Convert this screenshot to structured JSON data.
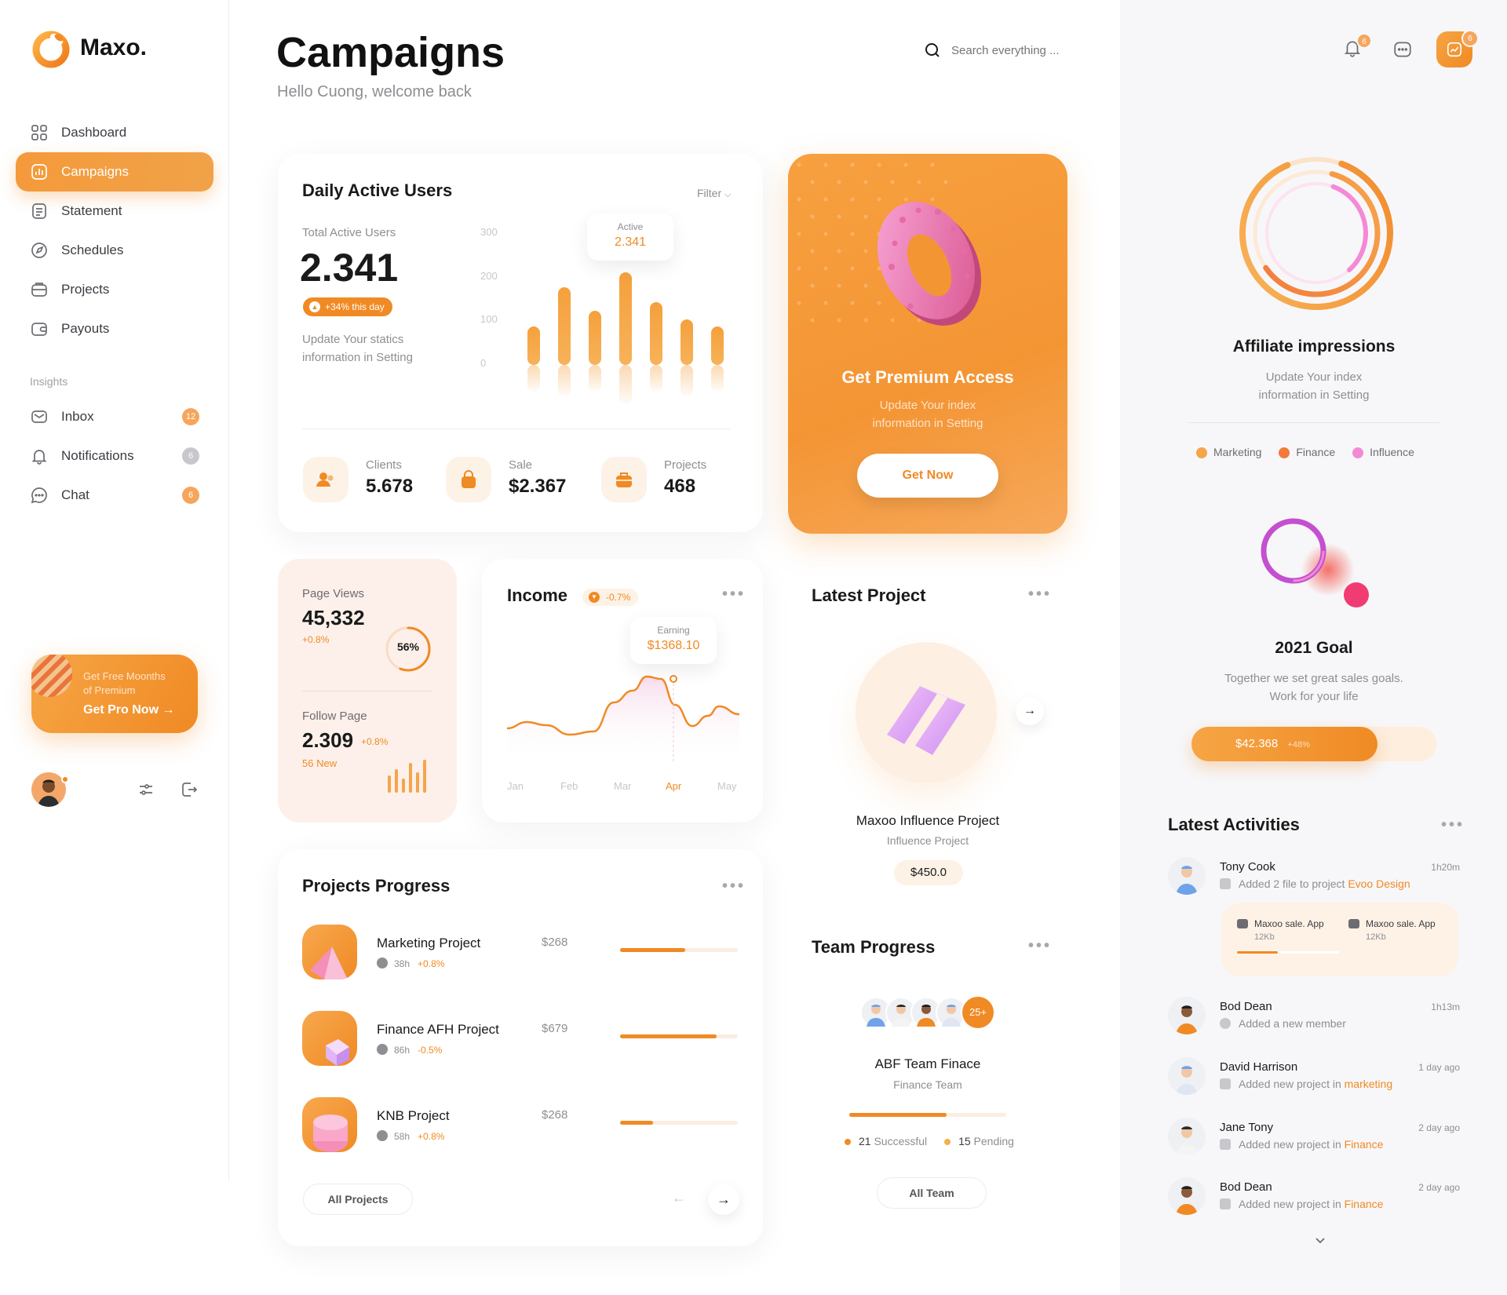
{
  "brand": {
    "name": "Maxo.",
    "accent": "#f08a24"
  },
  "sidebar": {
    "items": [
      {
        "label": "Dashboard",
        "icon": "grid-icon"
      },
      {
        "label": "Campaigns",
        "icon": "chart-square-icon",
        "active": true
      },
      {
        "label": "Statement",
        "icon": "document-icon"
      },
      {
        "label": "Schedules",
        "icon": "compass-icon"
      },
      {
        "label": "Projects",
        "icon": "box-icon"
      },
      {
        "label": "Payouts",
        "icon": "wallet-icon"
      }
    ],
    "insights_label": "Insights",
    "insights": [
      {
        "label": "Inbox",
        "badge": "12"
      },
      {
        "label": "Notifications",
        "badge": "6"
      },
      {
        "label": "Chat",
        "badge": "6"
      }
    ],
    "promo": {
      "line1": "Get Free Moonths",
      "line2": "of Premium",
      "cta": "Get Pro Now"
    }
  },
  "header": {
    "title": "Campaigns",
    "subtitle": "Hello Cuong, welcome back",
    "search_placeholder": "Search everything ...",
    "notif_badge": "6",
    "activity_badge": "6"
  },
  "dau": {
    "title": "Daily Active Users",
    "filter": "Filter",
    "total_label": "Total Active Users",
    "total_value": "2.341",
    "change": "+34% this day",
    "note_line1": "Update Your statics",
    "note_line2": "information in Setting",
    "tooltip_label": "Active",
    "tooltip_value": "2.341",
    "y_ticks": [
      "300",
      "200",
      "100",
      "0"
    ],
    "stats": [
      {
        "label": "Clients",
        "value": "5.678"
      },
      {
        "label": "Sale",
        "value": "$2.367"
      },
      {
        "label": "Projects",
        "value": "468"
      }
    ]
  },
  "chart_data": [
    {
      "type": "bar",
      "title": "Daily Active Users",
      "y_ticks": [
        300,
        200,
        100,
        0
      ],
      "ylim": [
        0,
        300
      ],
      "values": [
        90,
        180,
        125,
        215,
        145,
        105,
        90
      ],
      "grid": false,
      "highlight_index": 3
    },
    {
      "type": "area",
      "title": "Income",
      "categories": [
        "Jan",
        "Feb",
        "Mar",
        "Apr",
        "May"
      ],
      "values": [
        30,
        25,
        20,
        85,
        40
      ],
      "highlight": {
        "label": "Earning",
        "value": "$1368.10",
        "category": "Apr"
      }
    }
  ],
  "premium": {
    "title": "Get Premium Access",
    "line1": "Update Your index",
    "line2": "information in Setting",
    "cta": "Get Now"
  },
  "pageviews": {
    "label": "Page Views",
    "value": "45,332",
    "change": "+0.8%",
    "percent": "56%",
    "percent_value": 56,
    "follow_label": "Follow Page",
    "follow_value": "2.309",
    "follow_change": "+0.8%",
    "new_label": "56 New"
  },
  "income": {
    "title": "Income",
    "change": "-0.7%",
    "tooltip_label": "Earning",
    "tooltip_value": "$1368.10",
    "months": [
      "Jan",
      "Feb",
      "Mar",
      "Apr",
      "May"
    ]
  },
  "latest_project": {
    "title": "Latest Project",
    "name": "Maxoo Influence Project",
    "sub": "Influence Project",
    "price": "$450.0"
  },
  "projects_progress": {
    "title": "Projects Progress",
    "items": [
      {
        "name": "Marketing Project",
        "hours": "38h",
        "change": "+0.8%",
        "price": "$268",
        "progress": 0.55
      },
      {
        "name": "Finance AFH Project",
        "hours": "86h",
        "change": "-0.5%",
        "price": "$679",
        "progress": 0.82
      },
      {
        "name": "KNB Project",
        "hours": "58h",
        "change": "+0.8%",
        "price": "$268",
        "progress": 0.28
      }
    ],
    "all_button": "All Projects"
  },
  "team_progress": {
    "title": "Team Progress",
    "more_count": "25+",
    "name": "ABF Team Finace",
    "sub": "Finance Team",
    "progress": 0.62,
    "successful_count": "21",
    "successful_label": "Successful",
    "pending_count": "15",
    "pending_label": "Pending",
    "all_button": "All Team"
  },
  "affiliate": {
    "title": "Affiliate impressions",
    "line1": "Update Your index",
    "line2": "information in Setting",
    "legend": [
      {
        "label": "Marketing",
        "color": "#f5a54a"
      },
      {
        "label": "Finance",
        "color": "#f37a3b"
      },
      {
        "label": "Influence",
        "color": "#f48ad6"
      }
    ]
  },
  "goal": {
    "title": "2021 Goal",
    "line1": "Together we set great sales goals.",
    "line2": "Work for your life",
    "amount": "$42.368",
    "change": "+48%",
    "progress": 0.76
  },
  "activities": {
    "title": "Latest Activities",
    "items": [
      {
        "name": "Tony Cook",
        "time": "1h20m",
        "text": "Added 2 file to project ",
        "highlight": "Evoo Design"
      },
      {
        "name": "Bod Dean",
        "time": "1h13m",
        "text": "Added a new member",
        "highlight": ""
      },
      {
        "name": "David Harrison",
        "time": "1 day ago",
        "text": "Added new project in ",
        "highlight": "marketing"
      },
      {
        "name": "Jane Tony",
        "time": "2 day ago",
        "text": "Added new project in ",
        "highlight": "Finance"
      },
      {
        "name": "Bod Dean",
        "time": "2 day ago",
        "text": "Added new project in ",
        "highlight": "Finance"
      }
    ],
    "files": [
      {
        "name": "Maxoo sale. App",
        "size": "12Kb"
      },
      {
        "name": "Maxoo sale. App",
        "size": "12Kb"
      }
    ]
  }
}
